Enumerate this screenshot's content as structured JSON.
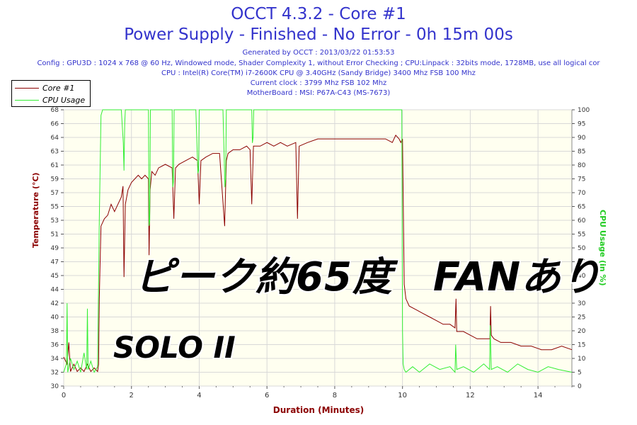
{
  "header": {
    "title": "OCCT 4.3.2 - Core #1",
    "subtitle": "Power Supply - Finished - No Error - 0h 15m 00s",
    "generated": "Generated by OCCT : 2013/03/22 01:53:53",
    "config": "Config : GPU3D : 1024 x 768 @ 60 Hz, Windowed mode, Shader Complexity 1, without Error Checking ; CPU:Linpack : 32bits mode, 1728MB, use all logical cor",
    "cpu": "CPU : Intel(R) Core(TM) i7-2600K CPU @ 3.40GHz (Sandy Bridge) 3400 Mhz FSB 100 Mhz",
    "clock": "Current clock : 3799 Mhz FSB 102 Mhz",
    "motherboard": "MotherBoard : MSI: P67A-C43 (MS-7673)"
  },
  "overlay": {
    "main_text": "ピーク約65度　FANあり",
    "sub_text": "SOLO II"
  },
  "colors": {
    "temperature": "#8b0000",
    "cpu_usage": "#33ee33",
    "title": "#3333cc",
    "grid": "#d8d8d8",
    "plot_bg": "#fffff0"
  },
  "chart_data": {
    "type": "line",
    "xlabel": "Duration (Minutes)",
    "ylabel": "Temperature (°C)",
    "y2label": "CPU Usage (in %)",
    "xlim": [
      0,
      15
    ],
    "ylim": [
      30,
      68
    ],
    "y2lim": [
      0,
      100
    ],
    "x_ticks": [
      0,
      2,
      4,
      6,
      8,
      10,
      12,
      14
    ],
    "y_ticks": [
      30,
      32,
      34,
      36,
      38,
      40,
      42,
      44,
      45,
      47,
      49,
      51,
      53,
      55,
      57,
      59,
      61,
      63,
      64,
      66,
      68
    ],
    "y2_ticks": [
      0,
      5,
      10,
      15,
      20,
      25,
      30,
      35,
      40,
      45,
      50,
      55,
      60,
      65,
      70,
      75,
      80,
      85,
      90,
      95,
      100
    ],
    "legend_position": "top-left",
    "grid": true,
    "series": [
      {
        "name": "Core #1",
        "axis": "left",
        "x": [
          0,
          0.1,
          0.15,
          0.2,
          0.3,
          0.4,
          0.5,
          0.6,
          0.7,
          0.8,
          0.9,
          1.0,
          1.03,
          1.05,
          1.08,
          1.1,
          1.2,
          1.3,
          1.4,
          1.5,
          1.6,
          1.7,
          1.75,
          1.78,
          1.82,
          1.9,
          2.0,
          2.1,
          2.2,
          2.3,
          2.4,
          2.5,
          2.52,
          2.55,
          2.6,
          2.7,
          2.8,
          3.0,
          3.2,
          3.25,
          3.3,
          3.4,
          3.6,
          3.8,
          3.95,
          4.0,
          4.05,
          4.2,
          4.4,
          4.6,
          4.75,
          4.8,
          4.85,
          5.0,
          5.2,
          5.4,
          5.5,
          5.55,
          5.6,
          5.8,
          6.0,
          6.2,
          6.4,
          6.6,
          6.85,
          6.9,
          6.95,
          7.2,
          7.5,
          8.0,
          8.5,
          9.0,
          9.5,
          9.7,
          9.8,
          9.9,
          9.95,
          10.0,
          10.05,
          10.1,
          10.2,
          10.4,
          10.6,
          10.8,
          11.0,
          11.2,
          11.4,
          11.55,
          11.58,
          11.6,
          11.8,
          12.0,
          12.2,
          12.4,
          12.58,
          12.6,
          12.62,
          12.7,
          12.9,
          13.2,
          13.5,
          13.8,
          14.1,
          14.4,
          14.7,
          15.0
        ],
        "values": [
          34,
          33,
          36,
          32,
          33,
          32,
          32.5,
          32,
          33,
          32,
          32.5,
          32,
          33,
          42,
          48,
          52,
          53,
          53.5,
          55,
          54,
          55,
          56,
          57.5,
          45,
          55,
          57,
          58,
          58.5,
          59,
          58.5,
          59,
          58.5,
          48,
          57,
          59.5,
          59,
          60,
          60.5,
          60,
          53,
          60,
          60.5,
          61,
          61.5,
          61,
          55,
          61,
          61.5,
          62,
          62,
          52,
          61,
          62,
          62.5,
          62.5,
          63,
          62.5,
          55,
          63,
          63,
          63.5,
          63,
          63.5,
          63,
          63.5,
          53,
          63,
          63.5,
          64,
          64,
          64,
          64,
          64,
          63.5,
          64.5,
          64,
          63.5,
          64,
          44,
          42,
          41,
          40.5,
          40,
          39.5,
          39,
          38.5,
          38.5,
          38,
          42,
          37.5,
          37.5,
          37,
          36.5,
          36.5,
          36.5,
          41,
          37,
          36.5,
          36,
          36,
          35.5,
          35.5,
          35,
          35,
          35.5,
          35
        ]
      },
      {
        "name": "CPU Usage",
        "axis": "right",
        "x": [
          0,
          0.08,
          0.1,
          0.12,
          0.2,
          0.3,
          0.4,
          0.5,
          0.6,
          0.68,
          0.7,
          0.72,
          0.8,
          0.9,
          1.0,
          1.05,
          1.1,
          1.15,
          1.2,
          1.3,
          1.5,
          1.7,
          1.76,
          1.78,
          1.8,
          1.82,
          1.84,
          2.0,
          2.3,
          2.5,
          2.52,
          2.54,
          2.56,
          2.7,
          3.0,
          3.2,
          3.22,
          3.24,
          3.26,
          3.5,
          3.9,
          3.96,
          3.98,
          4.0,
          4.02,
          4.3,
          4.7,
          4.76,
          4.78,
          4.8,
          4.82,
          5.2,
          5.55,
          5.57,
          5.59,
          5.61,
          6.0,
          7.0,
          8.0,
          9.0,
          9.9,
          9.98,
          10.0,
          10.02,
          10.05,
          10.1,
          10.3,
          10.5,
          10.8,
          11.1,
          11.4,
          11.55,
          11.57,
          11.6,
          11.8,
          12.1,
          12.4,
          12.57,
          12.59,
          12.62,
          12.8,
          13.1,
          13.4,
          13.7,
          14.0,
          14.3,
          14.6,
          15.0
        ],
        "values": [
          5,
          8,
          30,
          5,
          10,
          6,
          9,
          5,
          12,
          6,
          28,
          6,
          9,
          5,
          7,
          60,
          98,
          100,
          100,
          100,
          100,
          100,
          88,
          78,
          95,
          100,
          100,
          100,
          100,
          100,
          58,
          60,
          100,
          100,
          100,
          100,
          72,
          74,
          100,
          100,
          100,
          77,
          78,
          100,
          100,
          100,
          100,
          72,
          75,
          100,
          100,
          100,
          100,
          88,
          90,
          100,
          100,
          100,
          100,
          100,
          100,
          100,
          20,
          8,
          6,
          5,
          7,
          5,
          8,
          6,
          7,
          5,
          15,
          6,
          7,
          5,
          8,
          6,
          22,
          6,
          7,
          5,
          8,
          6,
          5,
          7,
          6,
          5
        ]
      }
    ]
  }
}
